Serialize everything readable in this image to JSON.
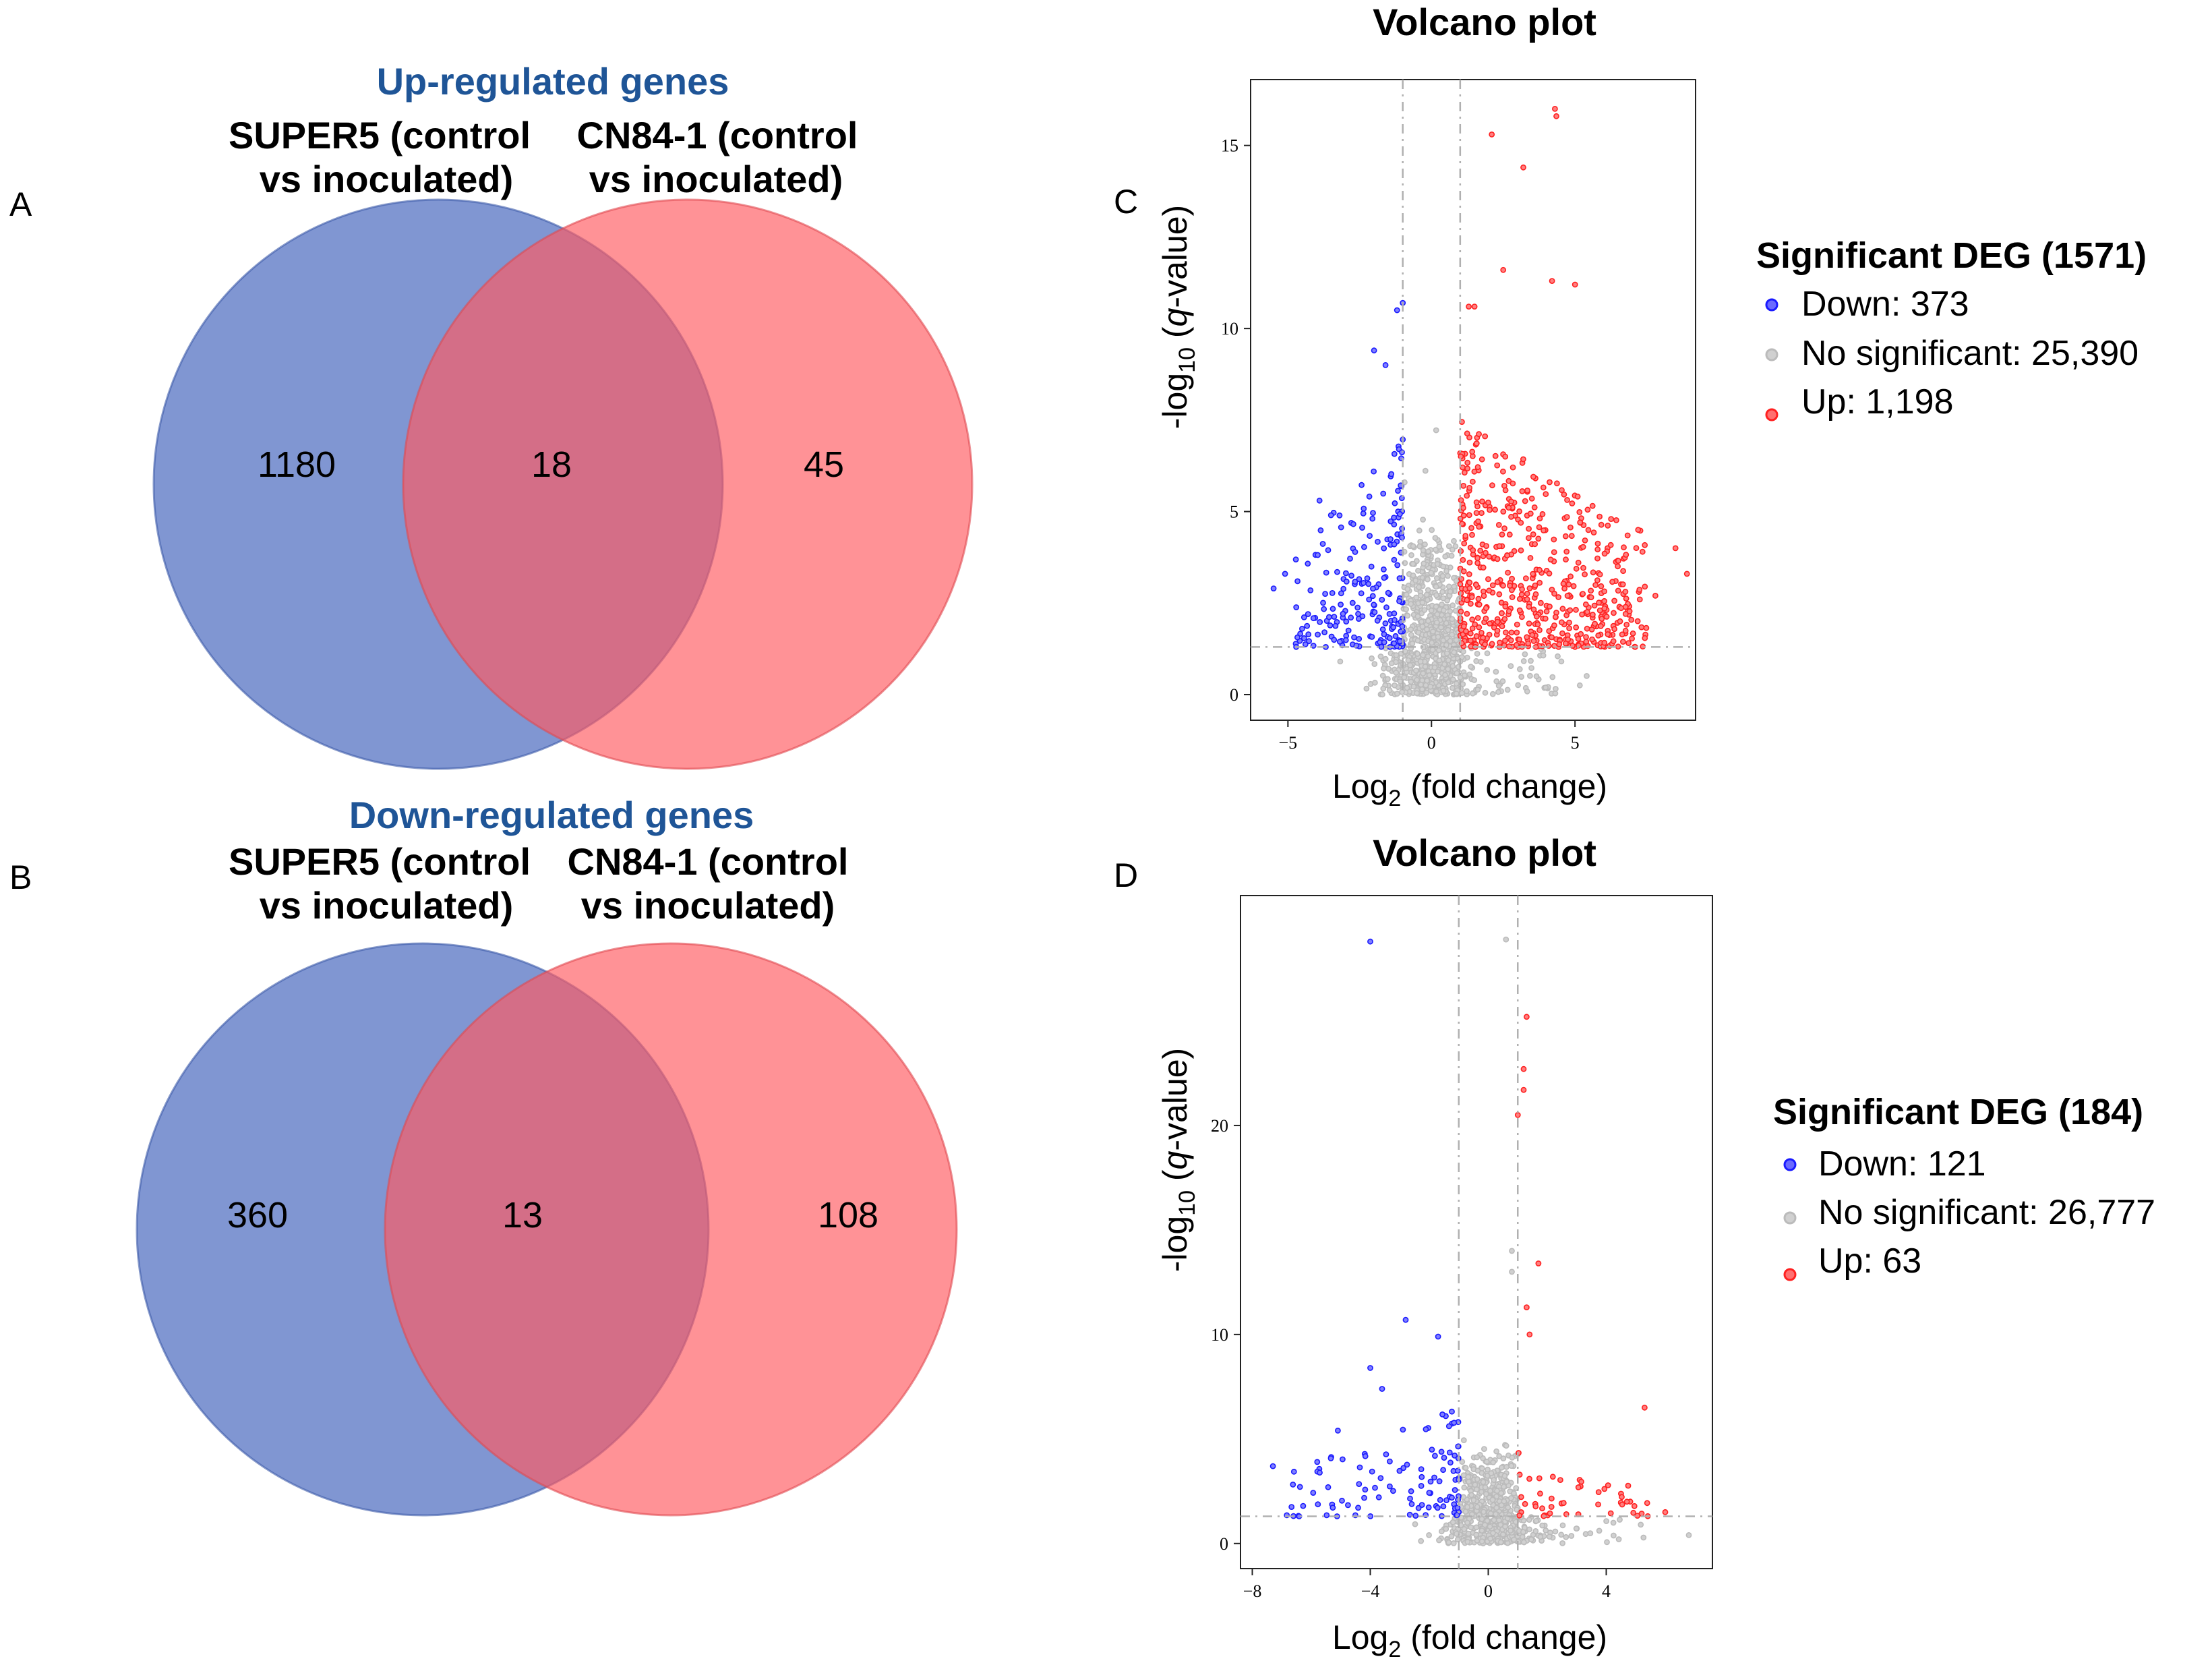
{
  "colors": {
    "venn_blue": "#4f6ec0",
    "venn_red": "#ff5a5f",
    "title_blue": "#1f5597",
    "down_point": "#1a1aff",
    "up_point": "#ff2020",
    "ns_point": "#bbbbbb",
    "threshold_line": "#b0b0b0"
  },
  "panels": {
    "A": {
      "label": "A",
      "title": "Up-regulated genes",
      "left_set_line1": "SUPER5 (control",
      "left_set_line2": "vs inoculated)",
      "right_set_line1": "CN84-1 (control",
      "right_set_line2": "vs inoculated)",
      "left_only": "1180",
      "overlap": "18",
      "right_only": "45"
    },
    "B": {
      "label": "B",
      "title": "Down-regulated genes",
      "left_set_line1": "SUPER5 (control",
      "left_set_line2": "vs inoculated)",
      "right_set_line1": "CN84-1 (control",
      "right_set_line2": "vs inoculated)",
      "left_only": "360",
      "overlap": "13",
      "right_only": "108"
    },
    "C": {
      "label": "C",
      "title": "Volcano plot",
      "xlabel_pre": "Log",
      "xlabel_sub": "2",
      "xlabel_post": " (fold change)",
      "ylabel_pre": "-log",
      "ylabel_sub": "10",
      "ylabel_mid": " (",
      "ylabel_ital": "q",
      "ylabel_post": "-value)",
      "legend_title": "Significant DEG (1571)",
      "legend_down": "Down: 373",
      "legend_ns": "No significant: 25,390",
      "legend_up": "Up: 1,198"
    },
    "D": {
      "label": "D",
      "title": "Volcano plot",
      "xlabel_pre": "Log",
      "xlabel_sub": "2",
      "xlabel_post": " (fold change)",
      "ylabel_pre": "-log",
      "ylabel_sub": "10",
      "ylabel_mid": " (",
      "ylabel_ital": "q",
      "ylabel_post": "-value)",
      "legend_title": "Significant DEG (184)",
      "legend_down": "Down: 121",
      "legend_ns": "No significant: 26,777",
      "legend_up": "Up: 63"
    }
  },
  "chart_data": [
    {
      "type": "venn",
      "panel": "A",
      "title": "Up-regulated genes",
      "sets": [
        "SUPER5 (control vs inoculated)",
        "CN84-1 (control vs inoculated)"
      ],
      "regions": {
        "left_only": 1180,
        "overlap": 18,
        "right_only": 45
      }
    },
    {
      "type": "venn",
      "panel": "B",
      "title": "Down-regulated genes",
      "sets": [
        "SUPER5 (control vs inoculated)",
        "CN84-1 (control vs inoculated)"
      ],
      "regions": {
        "left_only": 360,
        "overlap": 13,
        "right_only": 108
      }
    },
    {
      "type": "scatter",
      "panel": "C",
      "title": "Volcano plot",
      "xlabel": "Log2 (fold change)",
      "ylabel": "-log10 (q-value)",
      "xlim": [
        -6.3,
        9.2
      ],
      "ylim": [
        -0.7,
        16.8
      ],
      "xticks": [
        -5,
        0,
        5
      ],
      "yticks": [
        0,
        5,
        10,
        15
      ],
      "fc_threshold": 1,
      "q_threshold_y": 1.3,
      "counts": {
        "down": 373,
        "not_significant": 25390,
        "up": 1198
      },
      "highlight_points": {
        "up": [
          [
            4.3,
            16.0
          ],
          [
            4.35,
            15.8
          ],
          [
            2.1,
            15.3
          ],
          [
            3.2,
            14.4
          ],
          [
            4.2,
            11.3
          ],
          [
            5.0,
            11.2
          ],
          [
            2.5,
            11.6
          ],
          [
            1.3,
            10.6
          ],
          [
            1.5,
            10.6
          ],
          [
            7.2,
            4.5
          ],
          [
            8.5,
            4.0
          ],
          [
            8.9,
            3.3
          ],
          [
            7.8,
            2.7
          ]
        ],
        "down": [
          [
            -1.0,
            10.7
          ],
          [
            -1.2,
            10.5
          ],
          [
            -2.0,
            9.4
          ],
          [
            -1.6,
            9.0
          ],
          [
            -3.9,
            5.3
          ],
          [
            -3.5,
            4.9
          ],
          [
            -5.1,
            3.3
          ],
          [
            -5.5,
            2.9
          ],
          [
            -4.3,
            2.2
          ]
        ]
      },
      "dense_regions": {
        "up": {
          "x_range": [
            1.0,
            7.5
          ],
          "y_range": [
            1.3,
            7.5
          ],
          "n_drawn": 560
        },
        "down": {
          "x_range": [
            -4.8,
            -1.0
          ],
          "y_range": [
            1.3,
            7.0
          ],
          "n_drawn": 200
        },
        "not_significant": {
          "x_range": [
            -2.5,
            7.0
          ],
          "y_range": [
            0,
            6.0
          ],
          "n_drawn": 900
        }
      }
    },
    {
      "type": "scatter",
      "panel": "D",
      "title": "Volcano plot",
      "xlabel": "Log2 (fold change)",
      "ylabel": "-log10 (q-value)",
      "xlim": [
        -8.4,
        7.6
      ],
      "ylim": [
        -1.2,
        31.0
      ],
      "xticks": [
        -8,
        -4,
        0,
        4
      ],
      "yticks": [
        0,
        10,
        20
      ],
      "fc_threshold": 1,
      "q_threshold_y": 1.3,
      "counts": {
        "down": 121,
        "not_significant": 26777,
        "up": 63
      },
      "highlight_points": {
        "up": [
          [
            1.3,
            25.2
          ],
          [
            1.2,
            22.7
          ],
          [
            1.2,
            21.7
          ],
          [
            1.0,
            20.5
          ],
          [
            1.7,
            13.4
          ],
          [
            1.3,
            11.3
          ],
          [
            1.4,
            10.0
          ],
          [
            5.3,
            6.5
          ],
          [
            6.0,
            1.5
          ],
          [
            4.7,
            2.0
          ]
        ],
        "down": [
          [
            -4.0,
            28.8
          ],
          [
            -2.8,
            10.7
          ],
          [
            -1.7,
            9.9
          ],
          [
            -4.0,
            8.4
          ],
          [
            -3.6,
            7.4
          ],
          [
            -7.3,
            3.7
          ],
          [
            -5.8,
            3.9
          ],
          [
            -5.1,
            5.4
          ]
        ],
        "not_significant": [
          [
            0.6,
            28.9
          ],
          [
            0.8,
            14.0
          ],
          [
            0.8,
            13.0
          ],
          [
            6.8,
            0.4
          ]
        ]
      },
      "dense_regions": {
        "up": {
          "x_range": [
            1.0,
            5.5
          ],
          "y_range": [
            1.3,
            4.5
          ],
          "n_drawn": 45
        },
        "down": {
          "x_range": [
            -7.0,
            -1.0
          ],
          "y_range": [
            1.3,
            6.5
          ],
          "n_drawn": 105
        },
        "not_significant": {
          "x_range": [
            -6.5,
            6.5
          ],
          "y_range": [
            0,
            5.5
          ],
          "n_drawn": 700
        }
      }
    }
  ]
}
